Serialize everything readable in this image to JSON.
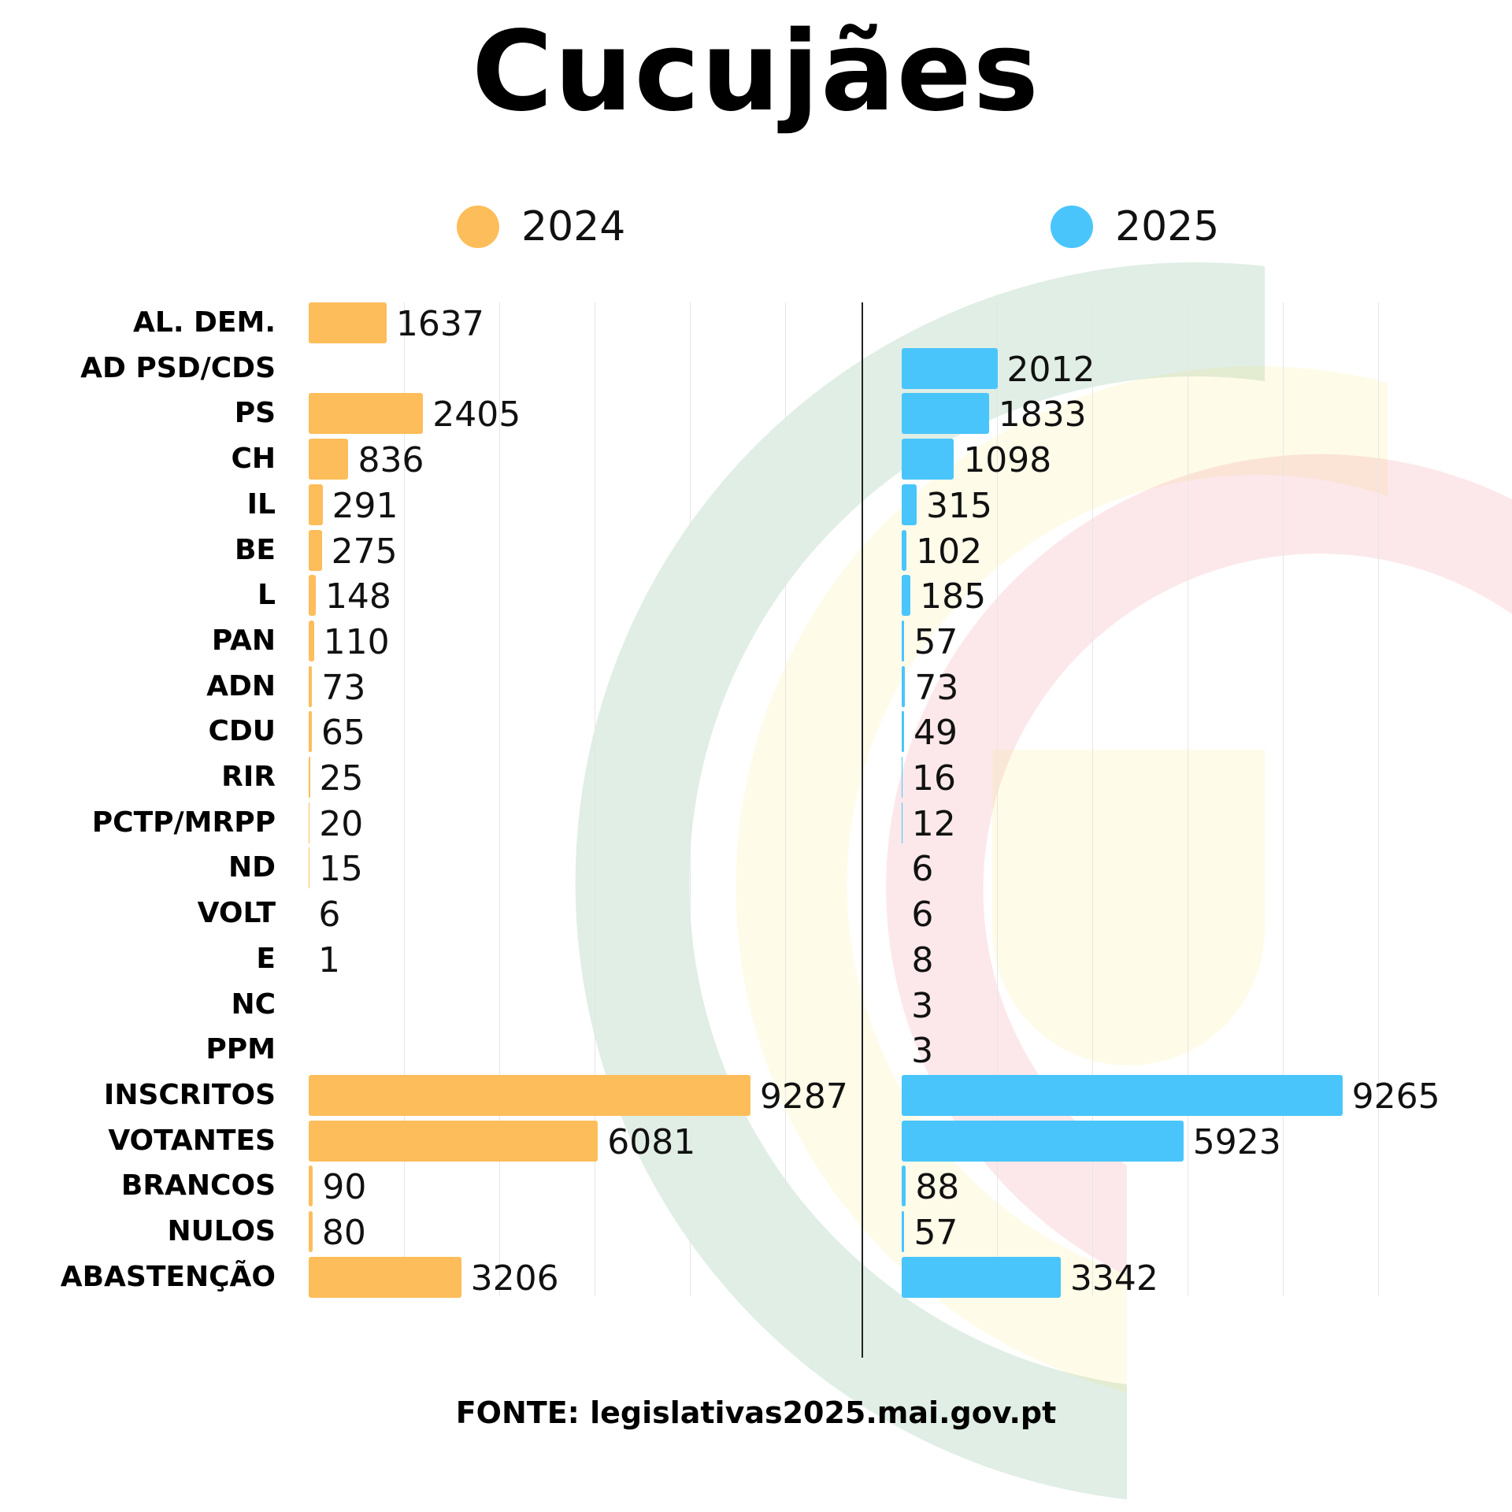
{
  "title": "Cucujães",
  "colors": {
    "y2024": "#FDBD5A",
    "y2025": "#4AC5FB"
  },
  "chart_data": {
    "type": "bar",
    "orientation": "horizontal",
    "categories": [
      "AL. DEM.",
      "AD PSD/CDS",
      "PS",
      "CH",
      "IL",
      "BE",
      "L",
      "PAN",
      "ADN",
      "CDU",
      "RIR",
      "PCTP/MRPP",
      "ND",
      "VOLT",
      "E",
      "NC",
      "PPM",
      "INSCRITOS",
      "VOTANTES",
      "BRANCOS",
      "NULOS",
      "ABASTENÇÃO"
    ],
    "series": [
      {
        "name": "2024",
        "color": "#FDBD5A",
        "values": [
          1637,
          null,
          2405,
          836,
          291,
          275,
          148,
          110,
          73,
          65,
          25,
          20,
          15,
          6,
          1,
          null,
          null,
          9287,
          6081,
          90,
          80,
          3206
        ]
      },
      {
        "name": "2025",
        "color": "#4AC5FB",
        "values": [
          null,
          2012,
          1833,
          1098,
          315,
          102,
          185,
          57,
          73,
          49,
          16,
          12,
          6,
          6,
          8,
          3,
          3,
          9265,
          5923,
          88,
          57,
          3342
        ]
      }
    ],
    "xlim": [
      0,
      10000
    ],
    "grid": true,
    "legend": "top"
  },
  "source": "FONTE: legislativas2025.mai.gov.pt"
}
